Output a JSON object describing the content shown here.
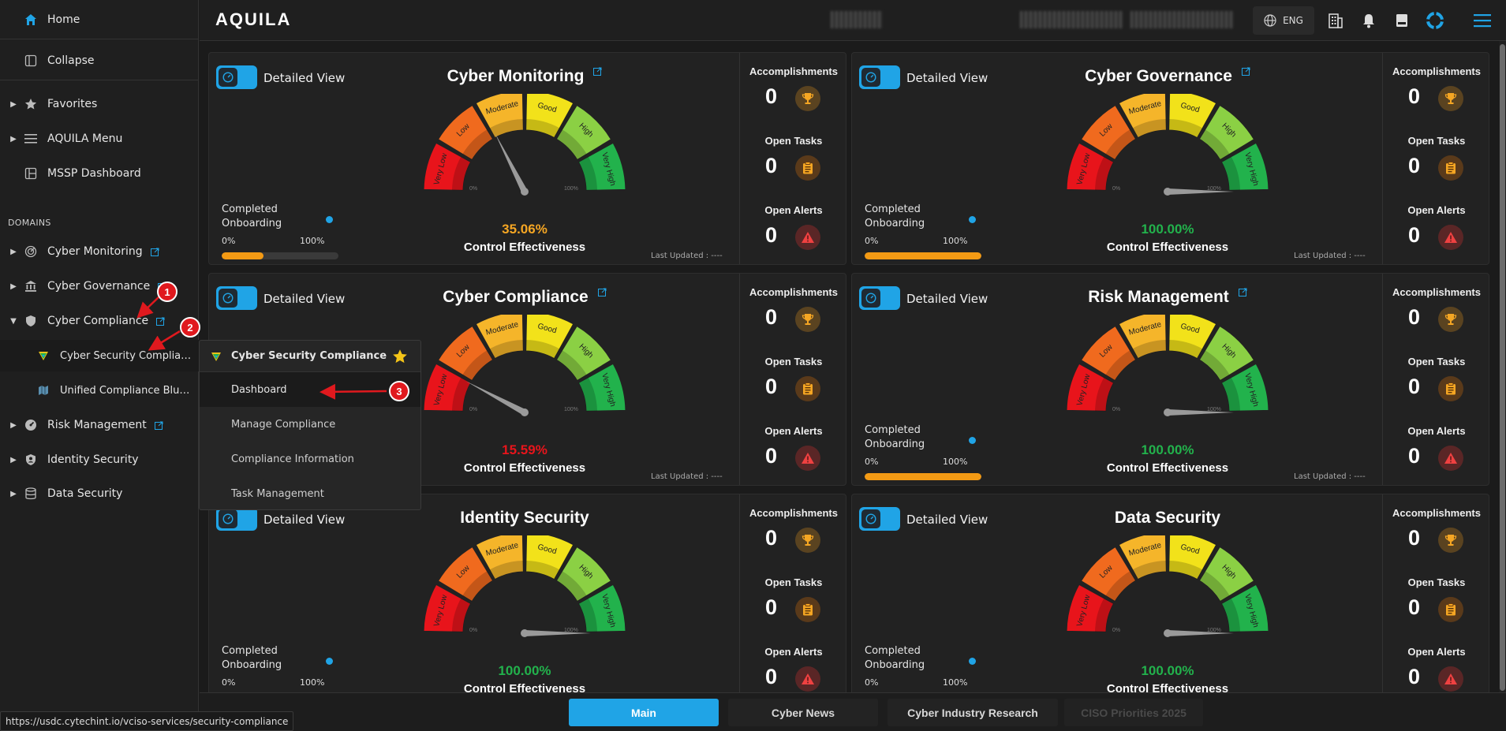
{
  "sidebar": {
    "home": "Home",
    "collapse": "Collapse",
    "favorites": "Favorites",
    "aquila_menu": "AQUILA Menu",
    "mssp_dashboard": "MSSP Dashboard",
    "domains_header": "DOMAINS",
    "domains": [
      {
        "label": "Cyber Monitoring"
      },
      {
        "label": "Cyber Governance"
      },
      {
        "label": "Cyber Compliance"
      },
      {
        "label": "Risk Management"
      },
      {
        "label": "Identity Security"
      },
      {
        "label": "Data Security"
      }
    ],
    "sub_items": [
      {
        "label": "Cyber Security Complian..."
      },
      {
        "label": "Unified Compliance Blue..."
      }
    ]
  },
  "topbar": {
    "logo": "AQUILA",
    "language": "ENG"
  },
  "popup": {
    "title": "Cyber Security Compliance",
    "items": [
      "Dashboard",
      "Manage Compliance",
      "Compliance Information",
      "Task Management"
    ]
  },
  "gauge_labels": {
    "very_low": "Very Low",
    "low": "Low",
    "moderate": "Moderate",
    "good": "Good",
    "high": "High",
    "very_high": "Very High",
    "zero": "0%",
    "hundred": "100%"
  },
  "common": {
    "detailed_view": "Detailed View",
    "control_effectiveness": "Control Effectiveness",
    "last_updated": "Last Updated : ----",
    "completed_onboarding": "Completed Onboarding",
    "progress_min": "0%",
    "progress_max": "100%",
    "accomplishments": "Accomplishments",
    "open_tasks": "Open Tasks",
    "open_alerts": "Open Alerts"
  },
  "cards": [
    {
      "title": "Cyber Monitoring",
      "percent": "35.06%",
      "value": 35.06,
      "color": "#f5a623",
      "onboarding": 0.36,
      "accomplishments": "0",
      "open_tasks": "0",
      "open_alerts": "0"
    },
    {
      "title": "Cyber Governance",
      "percent": "100.00%",
      "value": 100,
      "color": "#22b24c",
      "onboarding": 1.0,
      "accomplishments": "0",
      "open_tasks": "0",
      "open_alerts": "0"
    },
    {
      "title": "Cyber Compliance",
      "percent": "15.59%",
      "value": 15.59,
      "color": "#e8141b",
      "onboarding": 0.0,
      "accomplishments": "0",
      "open_tasks": "0",
      "open_alerts": "0"
    },
    {
      "title": "Risk Management",
      "percent": "100.00%",
      "value": 100,
      "color": "#22b24c",
      "onboarding": 1.0,
      "accomplishments": "0",
      "open_tasks": "0",
      "open_alerts": "0"
    },
    {
      "title": "Identity Security",
      "percent": "100.00%",
      "value": 100,
      "color": "#22b24c",
      "onboarding": 0.0,
      "accomplishments": "0",
      "open_tasks": "0",
      "open_alerts": "0"
    },
    {
      "title": "Data Security",
      "percent": "100.00%",
      "value": 100,
      "color": "#22b24c",
      "onboarding": 0.0,
      "accomplishments": "0",
      "open_tasks": "0",
      "open_alerts": "0"
    }
  ],
  "bottom_tabs": [
    "Main",
    "Cyber News",
    "Cyber Industry Research",
    "CISO Priorities 2025"
  ],
  "status_url": "https://usdc.cytechint.io/vciso-services/security-compliance",
  "annotations": [
    "1",
    "2",
    "3"
  ],
  "colors": {
    "accent": "#20a4e6",
    "annotation": "#e0191e"
  }
}
